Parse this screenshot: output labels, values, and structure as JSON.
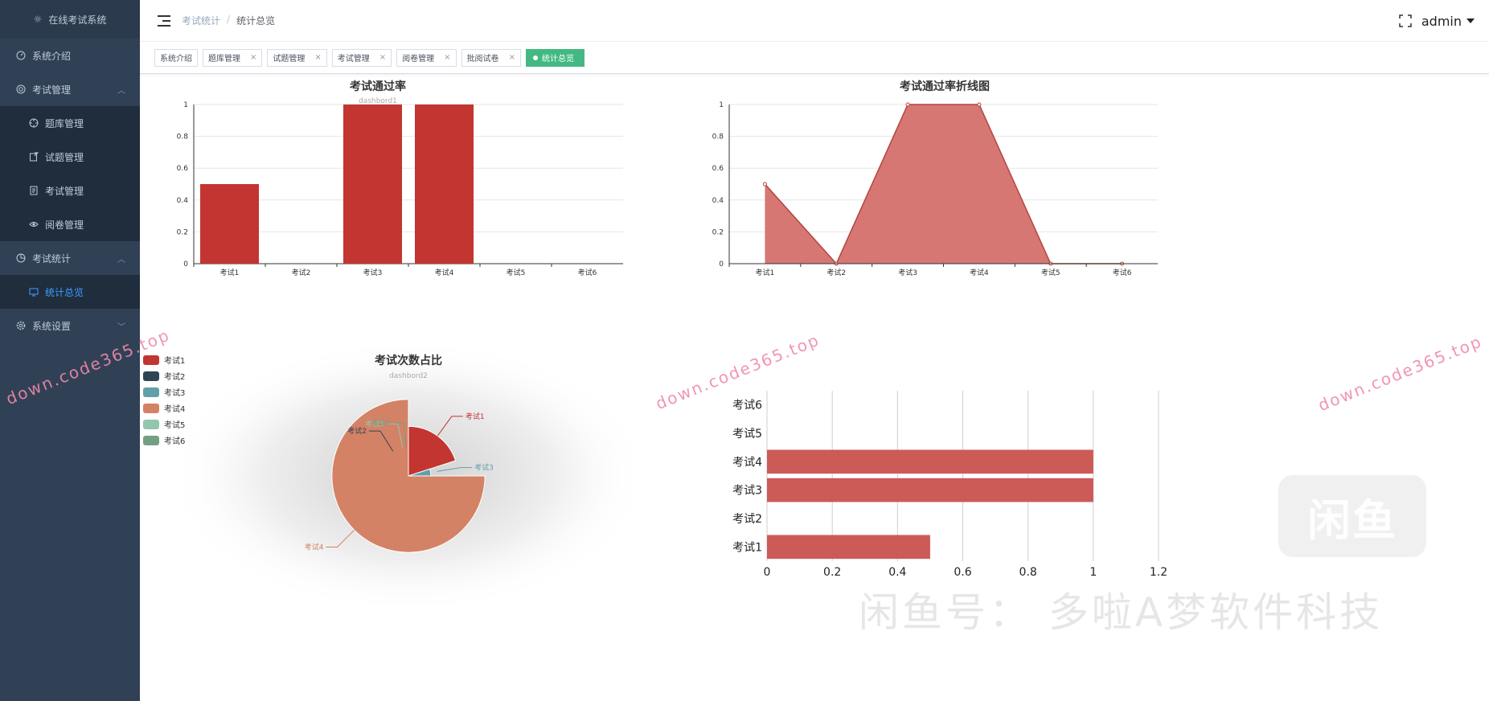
{
  "app": {
    "title": "在线考试系统"
  },
  "sidebar": {
    "items": [
      {
        "label": "系统介绍",
        "icon": "dashboard-icon",
        "level": 1,
        "active": false
      },
      {
        "label": "考试管理",
        "icon": "gear-ring-icon",
        "level": 1,
        "active": false,
        "expanded": true
      },
      {
        "label": "题库管理",
        "icon": "target-icon",
        "level": 2,
        "active": false
      },
      {
        "label": "试题管理",
        "icon": "edit-doc-icon",
        "level": 2,
        "active": false
      },
      {
        "label": "考试管理",
        "icon": "document-icon",
        "level": 2,
        "active": false
      },
      {
        "label": "阅卷管理",
        "icon": "eye-icon",
        "level": 2,
        "active": false
      },
      {
        "label": "考试统计",
        "icon": "pie-icon",
        "level": 1,
        "active": false,
        "expanded": true
      },
      {
        "label": "统计总览",
        "icon": "monitor-icon",
        "level": 2,
        "active": true
      },
      {
        "label": "系统设置",
        "icon": "settings-icon",
        "level": 1,
        "active": false,
        "expanded": false
      }
    ]
  },
  "navbar": {
    "breadcrumb": [
      "考试统计",
      "统计总览"
    ],
    "user": "admin"
  },
  "tags": [
    {
      "label": "系统介绍",
      "closable": false,
      "active": false
    },
    {
      "label": "题库管理",
      "closable": true,
      "active": false
    },
    {
      "label": "试题管理",
      "closable": true,
      "active": false
    },
    {
      "label": "考试管理",
      "closable": true,
      "active": false
    },
    {
      "label": "阅卷管理",
      "closable": true,
      "active": false
    },
    {
      "label": "批阅试卷",
      "closable": true,
      "active": false
    },
    {
      "label": "统计总览",
      "closable": false,
      "active": true
    }
  ],
  "colors": {
    "sidebar_bg": "#304156",
    "accent": "#409eff",
    "active_tag": "#42b983",
    "bar_red": "#c23531",
    "area_red": "#d4706c",
    "hbar_red": "#cc5a57"
  },
  "chart_data": [
    {
      "type": "bar",
      "title": "考试通过率",
      "subtitle": "dashbord1",
      "categories": [
        "考试1",
        "考试2",
        "考试3",
        "考试4",
        "考试5",
        "考试6"
      ],
      "values": [
        0.5,
        0,
        1,
        1,
        0,
        0
      ],
      "ylim": [
        0,
        1
      ],
      "yticks": [
        "0",
        "0.2",
        "0.4",
        "0.6",
        "0.8",
        "1"
      ],
      "grid": true
    },
    {
      "type": "area",
      "title": "考试通过率折线图",
      "categories": [
        "考试1",
        "考试2",
        "考试3",
        "考试4",
        "考试5",
        "考试6"
      ],
      "values": [
        0.5,
        0,
        1,
        1,
        0,
        0
      ],
      "ylim": [
        0,
        1
      ],
      "yticks": [
        "0",
        "0.2",
        "0.4",
        "0.6",
        "0.8",
        "1"
      ],
      "grid": true
    },
    {
      "type": "pie",
      "subtype": "rose",
      "title": "考试次数占比",
      "subtitle": "dashbord2",
      "legend": [
        "考试1",
        "考试2",
        "考试3",
        "考试4",
        "考试5",
        "考试6"
      ],
      "legend_colors": [
        "#c23531",
        "#2f4554",
        "#61a0a8",
        "#d48265",
        "#91c7ae",
        "#749f83"
      ],
      "values": [
        0.2,
        0,
        0.05,
        0.75,
        0,
        0
      ],
      "radius_rel": [
        0.6,
        0,
        0.25,
        0.95,
        0,
        0
      ],
      "legend_position": "top-left"
    },
    {
      "type": "bar",
      "orientation": "horizontal",
      "categories": [
        "考试1",
        "考试2",
        "考试3",
        "考试4",
        "考试5",
        "考试6"
      ],
      "values": [
        0.5,
        0,
        1,
        1,
        0,
        0
      ],
      "xlim": [
        0,
        1.2
      ],
      "xticks": [
        "0",
        "0.2",
        "0.4",
        "0.6",
        "0.8",
        "1",
        "1.2"
      ],
      "grid": true
    }
  ],
  "watermarks": {
    "url": "down.code365.top",
    "seller": "闲鱼号： 多啦A梦软件科技",
    "logo": "闲鱼"
  }
}
